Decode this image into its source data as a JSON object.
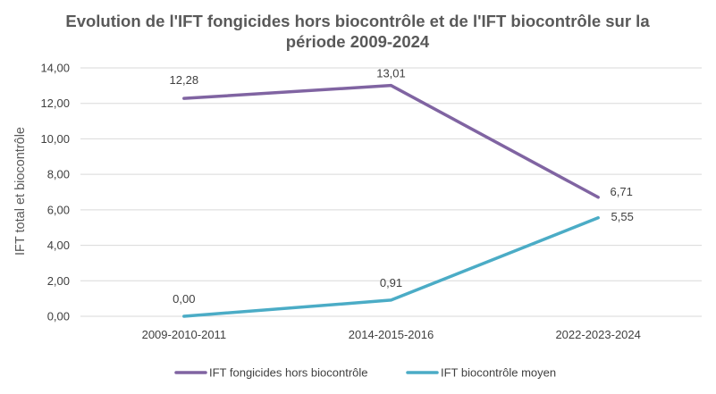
{
  "chart_data": {
    "type": "line",
    "title_line1": "Evolution de l'IFT fongicides hors biocontrôle et de l'IFT biocontrôle sur la",
    "title_line2": "période 2009-2024",
    "xlabel": "",
    "ylabel": "IFT total et biocontrôle",
    "categories": [
      "2009-2010-2011",
      "2014-2015-2016",
      "2022-2023-2024"
    ],
    "ylim": [
      0,
      14
    ],
    "yticks": [
      "0,00",
      "2,00",
      "4,00",
      "6,00",
      "8,00",
      "10,00",
      "12,00",
      "14,00"
    ],
    "grid": true,
    "legend_position": "bottom",
    "series": [
      {
        "name": "IFT fongicides hors biocontrôle",
        "color": "#8064A2",
        "values": [
          12.28,
          13.01,
          6.71
        ],
        "labels": [
          "12,28",
          "13,01",
          "6,71"
        ]
      },
      {
        "name": "IFT biocontrôle moyen",
        "color": "#4BACC6",
        "values": [
          0.0,
          0.91,
          5.55
        ],
        "labels": [
          "0,00",
          "0,91",
          "5,55"
        ]
      }
    ]
  }
}
